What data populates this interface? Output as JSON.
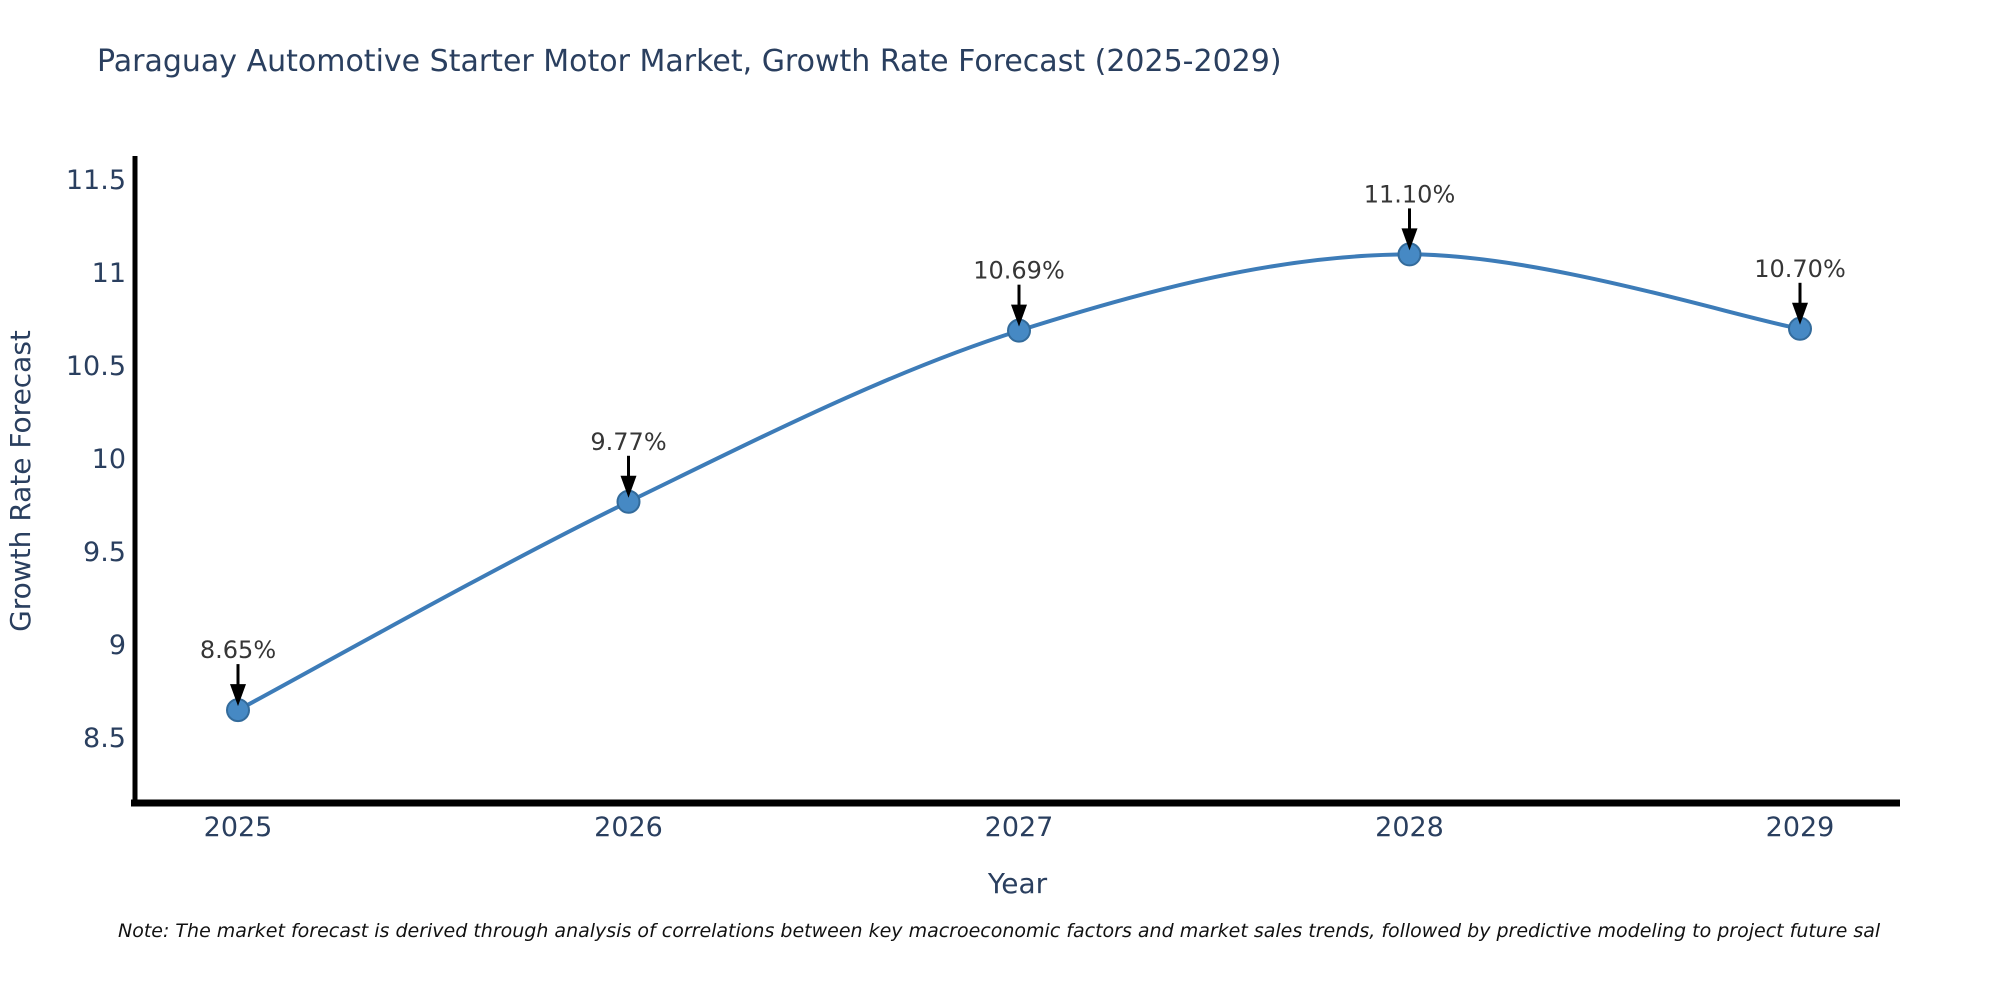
{
  "title": {
    "text": "Paraguay Automotive Starter Motor Market, Growth Rate Forecast (2025-2029)",
    "color": "#2a3f5f"
  },
  "note": {
    "text": "Note: The market forecast is derived through analysis of correlations between key macroeconomic factors and market sales trends, followed by predictive modeling to project future sal"
  },
  "chart_data": {
    "type": "line",
    "title": "Paraguay Automotive Starter Motor Market, Growth Rate Forecast (2025-2029)",
    "x": [
      2025,
      2026,
      2027,
      2028,
      2029
    ],
    "y": [
      8.65,
      9.77,
      10.69,
      11.1,
      10.7
    ],
    "point_labels": [
      "8.65%",
      "9.77%",
      "10.69%",
      "11.10%",
      "10.70%"
    ],
    "xlabel": "Year",
    "ylabel": "Growth Rate Forecast",
    "xticks": [
      "2025",
      "2026",
      "2027",
      "2028",
      "2029"
    ],
    "yticks": [
      8.5,
      9,
      9.5,
      10,
      10.5,
      11,
      11.5
    ],
    "ytick_labels": [
      "8.5",
      "9",
      "9.5",
      "10",
      "10.5",
      "11",
      "11.5"
    ],
    "ylim": [
      8.1,
      11.6
    ],
    "grid": false,
    "legend": "none",
    "line_shape": "spline",
    "colors": {
      "line": "#3d7cb8",
      "marker": "#4689c4",
      "marker_edge": "#336b9b",
      "axis": "#000000",
      "tick_label": "#2a3f5f",
      "axis_title": "#2a3f5f",
      "annotation_text": "#363636",
      "annotation_arrow": "#000000"
    }
  }
}
